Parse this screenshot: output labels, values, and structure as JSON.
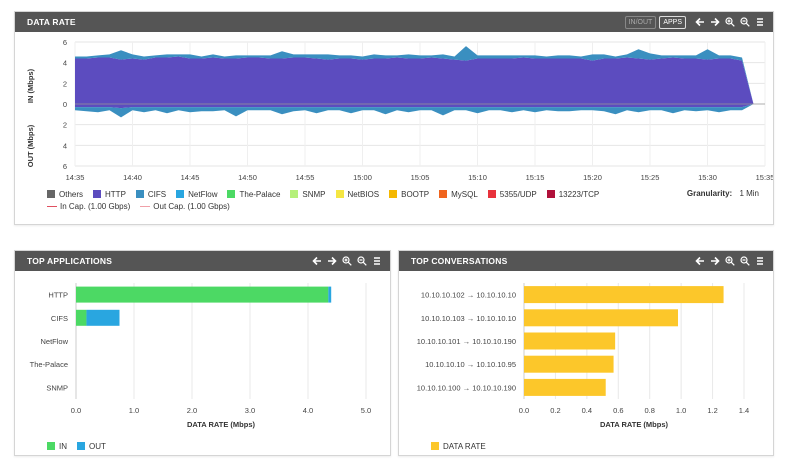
{
  "data_rate": {
    "title": "DATA RATE",
    "btn_inout": "IN/OUT",
    "btn_apps": "APPS",
    "ylabel_in": "IN (Mbps)",
    "ylabel_out": "OUT (Mbps)",
    "y_ticks": [
      "6",
      "4",
      "2",
      "0",
      "2",
      "4",
      "6"
    ],
    "x_ticks": [
      "14:35",
      "14:40",
      "14:45",
      "14:50",
      "14:55",
      "15:00",
      "15:05",
      "15:10",
      "15:15",
      "15:20",
      "15:25",
      "15:30",
      "15:35"
    ],
    "granularity_label": "Granularity:",
    "granularity_value": "1 Min",
    "legend": [
      {
        "label": "Others",
        "color": "#666666"
      },
      {
        "label": "HTTP",
        "color": "#5c4cbf"
      },
      {
        "label": "CIFS",
        "color": "#3a8fc0"
      },
      {
        "label": "NetFlow",
        "color": "#29a6e0"
      },
      {
        "label": "The-Palace",
        "color": "#4cd964"
      },
      {
        "label": "SNMP",
        "color": "#b5f07a"
      },
      {
        "label": "NetBIOS",
        "color": "#f5e642"
      },
      {
        "label": "BOOTP",
        "color": "#f5b800"
      },
      {
        "label": "MySQL",
        "color": "#f0641e"
      },
      {
        "label": "5355/UDP",
        "color": "#e8323c"
      },
      {
        "label": "13223/TCP",
        "color": "#b0103a"
      }
    ],
    "cap_legend": [
      {
        "label": "In Cap. (1.00 Gbps)",
        "color": "#e05060"
      },
      {
        "label": "Out Cap. (1.00 Gbps)",
        "color": "#f0a0a8"
      }
    ]
  },
  "top_apps": {
    "title": "TOP APPLICATIONS",
    "xlabel": "DATA RATE (Mbps)",
    "legend": [
      {
        "label": "IN",
        "color": "#4cd964"
      },
      {
        "label": "OUT",
        "color": "#29a6e0"
      }
    ]
  },
  "top_conv": {
    "title": "TOP CONVERSATIONS",
    "xlabel": "DATA RATE (Mbps)",
    "legend": [
      {
        "label": "DATA RATE",
        "color": "#fcc72a"
      }
    ]
  },
  "chart_data": [
    {
      "type": "area",
      "x": [
        "14:35",
        "14:36",
        "14:37",
        "14:38",
        "14:39",
        "14:40",
        "14:41",
        "14:42",
        "14:43",
        "14:44",
        "14:45",
        "14:46",
        "14:47",
        "14:48",
        "14:49",
        "14:50",
        "14:51",
        "14:52",
        "14:53",
        "14:54",
        "14:55",
        "14:56",
        "14:57",
        "14:58",
        "14:59",
        "15:00",
        "15:01",
        "15:02",
        "15:03",
        "15:04",
        "15:05",
        "15:06",
        "15:07",
        "15:08",
        "15:09",
        "15:10",
        "15:11",
        "15:12",
        "15:13",
        "15:14",
        "15:15",
        "15:16",
        "15:17",
        "15:18",
        "15:19",
        "15:20",
        "15:21",
        "15:22",
        "15:23",
        "15:24",
        "15:25",
        "15:26",
        "15:27",
        "15:28",
        "15:29",
        "15:30",
        "15:31",
        "15:32",
        "15:33"
      ],
      "series": [
        {
          "name": "HTTP",
          "direction": "in",
          "values": [
            4.4,
            4.4,
            4.5,
            4.5,
            4.3,
            4.4,
            4.3,
            4.5,
            4.5,
            4.6,
            4.4,
            4.4,
            4.5,
            4.4,
            4.4,
            4.5,
            4.5,
            4.4,
            4.4,
            4.5,
            4.5,
            4.4,
            4.3,
            4.4,
            4.4,
            4.3,
            4.4,
            4.4,
            4.5,
            4.4,
            4.4,
            4.5,
            4.4,
            4.3,
            4.2,
            4.4,
            4.4,
            4.4,
            4.4,
            4.5,
            4.4,
            4.4,
            4.4,
            4.4,
            4.4,
            4.2,
            4.4,
            4.4,
            4.5,
            4.4,
            4.3,
            4.4,
            4.5,
            4.4,
            4.4,
            4.3,
            4.4,
            4.4,
            4.2
          ]
        },
        {
          "name": "CIFS",
          "direction": "in",
          "values": [
            0.2,
            0.2,
            0.2,
            0.3,
            0.9,
            0.4,
            0.3,
            0.2,
            0.3,
            0.2,
            0.4,
            0.2,
            0.3,
            0.2,
            0.3,
            0.2,
            0.2,
            0.3,
            0.7,
            0.3,
            0.3,
            0.4,
            0.5,
            0.3,
            0.3,
            0.3,
            0.4,
            0.3,
            0.2,
            0.4,
            0.3,
            0.2,
            0.4,
            0.3,
            1.4,
            0.3,
            0.3,
            0.3,
            0.3,
            0.2,
            0.3,
            0.2,
            0.3,
            0.3,
            0.2,
            0.6,
            0.4,
            0.2,
            0.3,
            0.9,
            0.6,
            0.3,
            0.2,
            0.3,
            0.3,
            1.0,
            0.3,
            0.3,
            0.3
          ]
        },
        {
          "name": "HTTP",
          "direction": "out",
          "values": [
            0.3,
            0.3,
            0.3,
            0.3,
            0.4,
            0.3,
            0.3,
            0.3,
            0.3,
            0.3,
            0.3,
            0.3,
            0.3,
            0.3,
            0.3,
            0.3,
            0.3,
            0.3,
            0.3,
            0.3,
            0.3,
            0.3,
            0.3,
            0.3,
            0.3,
            0.3,
            0.3,
            0.3,
            0.3,
            0.3,
            0.3,
            0.3,
            0.3,
            0.3,
            0.3,
            0.3,
            0.3,
            0.3,
            0.3,
            0.3,
            0.3,
            0.3,
            0.3,
            0.3,
            0.3,
            0.3,
            0.3,
            0.3,
            0.3,
            0.3,
            0.3,
            0.3,
            0.3,
            0.3,
            0.3,
            0.3,
            0.3,
            0.3,
            0.3
          ]
        },
        {
          "name": "CIFS",
          "direction": "out",
          "values": [
            0.3,
            0.4,
            0.5,
            0.3,
            0.9,
            0.3,
            0.5,
            0.3,
            0.6,
            0.3,
            0.5,
            0.4,
            0.4,
            0.3,
            0.9,
            0.3,
            0.3,
            0.3,
            0.7,
            0.4,
            0.3,
            0.6,
            0.3,
            0.3,
            0.6,
            0.3,
            0.3,
            0.7,
            0.3,
            0.5,
            0.3,
            0.3,
            0.8,
            0.3,
            0.3,
            0.6,
            0.3,
            0.3,
            0.5,
            0.3,
            0.5,
            0.3,
            0.4,
            0.4,
            0.3,
            0.3,
            0.4,
            0.7,
            0.3,
            0.5,
            0.3,
            0.3,
            0.6,
            0.3,
            0.4,
            0.3,
            0.5,
            0.3,
            0.3
          ]
        }
      ],
      "ylim_in": [
        0,
        6
      ],
      "ylim_out": [
        0,
        6
      ]
    },
    {
      "type": "bar",
      "orientation": "horizontal",
      "stacked": true,
      "categories": [
        "HTTP",
        "CIFS",
        "NetFlow",
        "The-Palace",
        "SNMP"
      ],
      "series": [
        {
          "name": "IN",
          "values": [
            4.35,
            0.18,
            0.0,
            0.0,
            0.0
          ]
        },
        {
          "name": "OUT",
          "values": [
            0.05,
            0.57,
            0.0,
            0.0,
            0.0
          ]
        }
      ],
      "x_ticks": [
        "0.0",
        "1.0",
        "2.0",
        "3.0",
        "4.0",
        "5.0"
      ],
      "xlim": [
        0,
        5.0
      ],
      "xlabel": "DATA RATE (Mbps)"
    },
    {
      "type": "bar",
      "orientation": "horizontal",
      "categories": [
        "10.10.10.102 → 10.10.10.10",
        "10.10.10.103 → 10.10.10.10",
        "10.10.10.101 → 10.10.10.190",
        "10.10.10.10 → 10.10.10.95",
        "10.10.10.100 → 10.10.10.190"
      ],
      "series": [
        {
          "name": "DATA RATE",
          "values": [
            1.27,
            0.98,
            0.58,
            0.57,
            0.52
          ]
        }
      ],
      "x_ticks": [
        "0.0",
        "0.2",
        "0.4",
        "0.6",
        "0.8",
        "1.0",
        "1.2",
        "1.4"
      ],
      "xlim": [
        0,
        1.4
      ],
      "xlabel": "DATA RATE (Mbps)"
    }
  ]
}
